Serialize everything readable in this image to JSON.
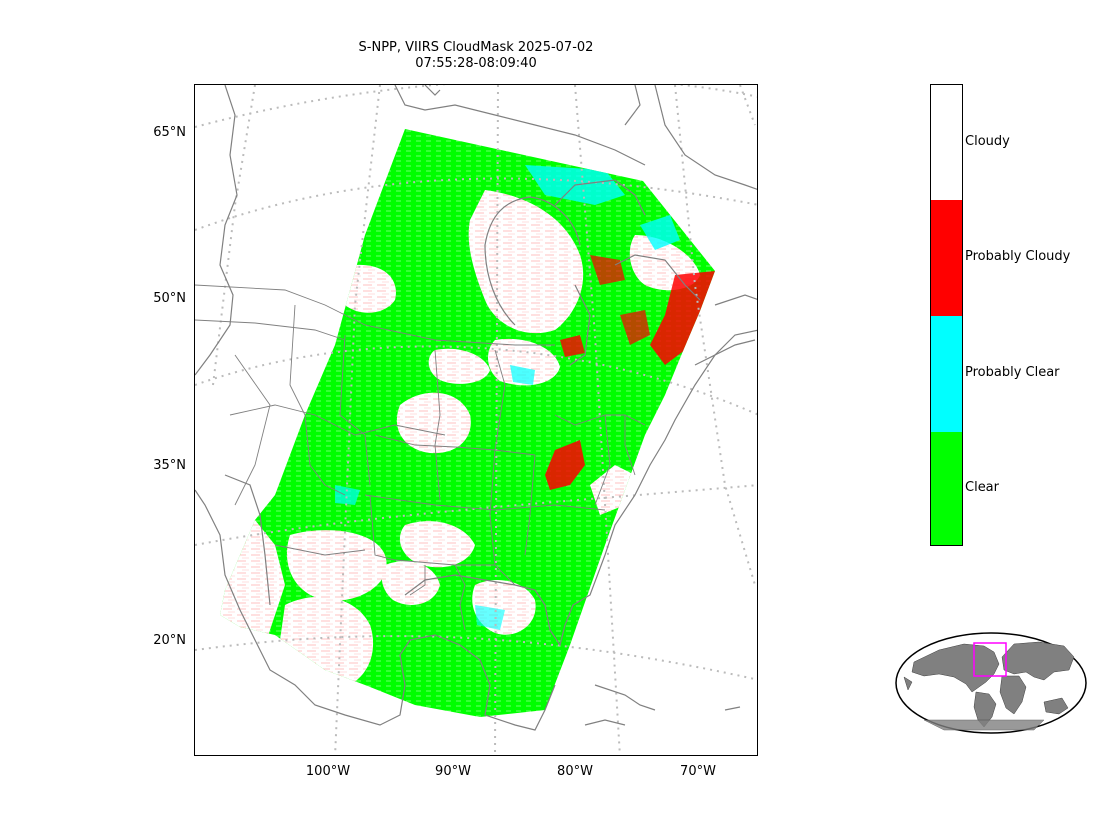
{
  "title": {
    "line1": "S-NPP, VIIRS CloudMask 2025-07-02",
    "line2": "07:55:28-08:09:40"
  },
  "map": {
    "lat_labels": [
      "65°N",
      "50°N",
      "35°N",
      "20°N"
    ],
    "lon_labels": [
      "100°W",
      "90°W",
      "80°W",
      "70°W"
    ],
    "gridline_color": "#bbbbbb",
    "coastline_color": "#808080",
    "border_color": "#808080"
  },
  "colorbar": {
    "categories": [
      {
        "label": "Cloudy",
        "color": "#ffffff"
      },
      {
        "label": "Probably Cloudy",
        "color": "#ff0000"
      },
      {
        "label": "Probably Clear",
        "color": "#00ffff"
      },
      {
        "label": "Clear",
        "color": "#00ff00"
      }
    ]
  },
  "inset": {
    "land_color": "#808080",
    "highlight_color": "#ff00ff"
  }
}
